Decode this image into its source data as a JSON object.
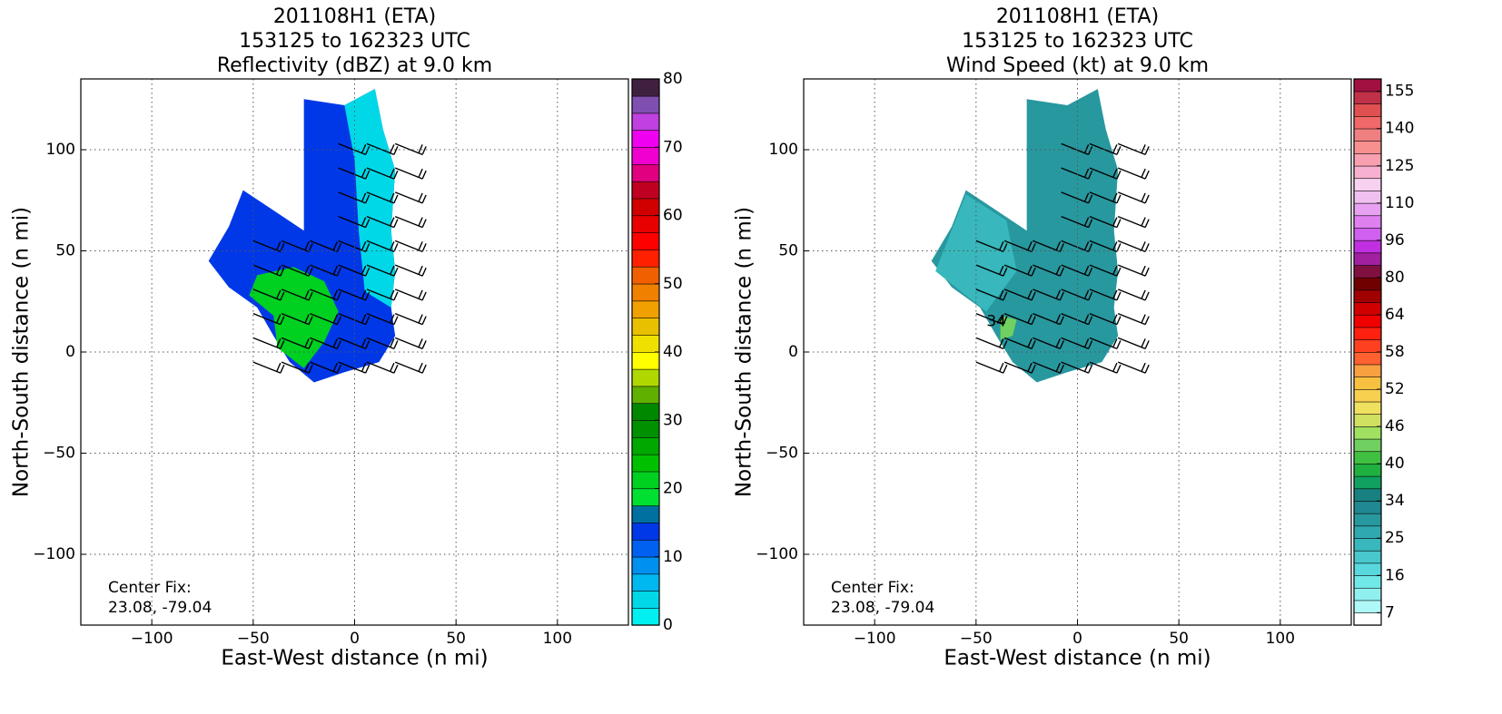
{
  "chart_data": [
    {
      "type": "heatmap",
      "title": [
        "201108H1 (ETA)",
        "153125 to 162323 UTC",
        "Reflectivity (dBZ) at 9.0 km"
      ],
      "xlabel": "East-West distance (n mi)",
      "ylabel": "North-South distance (n mi)",
      "xlim": [
        -135,
        135
      ],
      "ylim": [
        -135,
        135
      ],
      "xticks": [
        {
          "value": -100,
          "label": "−100"
        },
        {
          "value": -50,
          "label": "−50"
        },
        0,
        50,
        100
      ],
      "yticks": [
        {
          "value": -100,
          "label": "−100"
        },
        {
          "value": -50,
          "label": "−50"
        },
        0,
        50,
        100
      ],
      "grid": true,
      "annotation": [
        "Center Fix:",
        "23.08, -79.04"
      ],
      "colorbar": {
        "clim": [
          0,
          80
        ],
        "ticks": [
          0,
          10,
          20,
          30,
          40,
          50,
          60,
          70,
          80
        ],
        "colors": [
          "#00f0f0",
          "#00d8e8",
          "#00b8f0",
          "#0090f0",
          "#0060f0",
          "#0038e8",
          "#0070a0",
          "#00e030",
          "#00d020",
          "#00c000",
          "#00a800",
          "#009000",
          "#008800",
          "#60b000",
          "#b0d800",
          "#ffff00",
          "#f0e000",
          "#e8c000",
          "#f0a000",
          "#f08000",
          "#f06000",
          "#ff2000",
          "#ff0000",
          "#e80000",
          "#d00000",
          "#c00020",
          "#e00080",
          "#f000d0",
          "#f000f0",
          "#c040e0",
          "#8050b0",
          "#402040"
        ]
      }
    },
    {
      "type": "heatmap",
      "title": [
        "201108H1 (ETA)",
        "153125 to 162323 UTC",
        "Wind Speed (kt) at 9.0 km"
      ],
      "xlabel": "East-West distance (n mi)",
      "ylabel": "North-South distance (n mi)",
      "xlim": [
        -135,
        135
      ],
      "ylim": [
        -135,
        135
      ],
      "xticks": [
        {
          "value": -100,
          "label": "−100"
        },
        {
          "value": -50,
          "label": "−50"
        },
        0,
        50,
        100
      ],
      "yticks": [
        {
          "value": -100,
          "label": "−100"
        },
        {
          "value": -50,
          "label": "−50"
        },
        0,
        50,
        100
      ],
      "grid": true,
      "annotation": [
        "Center Fix:",
        "23.08, -79.04"
      ],
      "contour_label": "34",
      "colorbar": {
        "ticks": [
          7,
          16,
          25,
          34,
          40,
          46,
          52,
          58,
          64,
          80,
          96,
          110,
          125,
          140,
          155
        ],
        "colors": [
          "#ffffff",
          "#b0f8f8",
          "#90f0f0",
          "#70e8e8",
          "#58d8dc",
          "#48c8cc",
          "#38b8bc",
          "#30a8b0",
          "#28989f",
          "#208890",
          "#188080",
          "#10a060",
          "#20b040",
          "#40c040",
          "#70d060",
          "#a0e060",
          "#d0e060",
          "#f0e060",
          "#f8d050",
          "#f8c040",
          "#f8a040",
          "#ff6030",
          "#ff4020",
          "#ff2010",
          "#f00000",
          "#d00000",
          "#a00000",
          "#700000",
          "#801040",
          "#a020a0",
          "#c030e0",
          "#d060f0",
          "#e080f0",
          "#e8a0f0",
          "#f0c0f0",
          "#f8d0f0",
          "#f8b0d0",
          "#f8a0b0",
          "#f89090",
          "#f08080",
          "#f06868",
          "#e05050",
          "#c03048",
          "#a01040"
        ]
      }
    }
  ]
}
